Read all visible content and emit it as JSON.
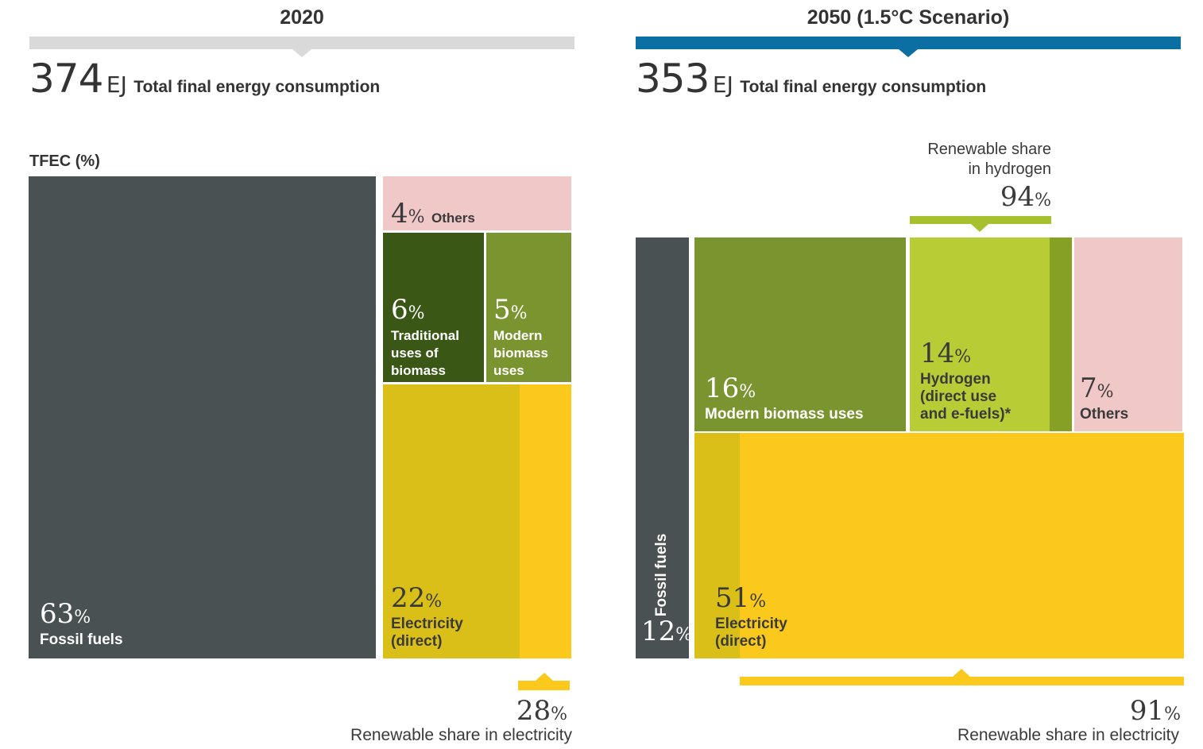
{
  "chart_data": [
    {
      "type": "treemap",
      "title": "2020",
      "total_value": "374",
      "total_unit": "EJ",
      "total_label": "Total final energy consumption",
      "axis_label": "TFEC (%)",
      "segments": [
        {
          "name": "Fossil fuels",
          "value": 63,
          "color": "#4a5152"
        },
        {
          "name": "Others",
          "value": 4,
          "color": "#f0c8c8"
        },
        {
          "name": "Traditional uses of biomass",
          "value": 6,
          "color": "#3a5716"
        },
        {
          "name": "Modern biomass uses",
          "value": 5,
          "color": "#7a9430"
        },
        {
          "name": "Electricity (direct)",
          "value": 22,
          "color": "#dabf18",
          "renewable_color": "#fbc81c"
        }
      ],
      "renewable_share_electricity": {
        "value": 28,
        "label": "Renewable share in electricity"
      }
    },
    {
      "type": "treemap",
      "title": "2050 (1.5°C Scenario)",
      "total_value": "353",
      "total_unit": "EJ",
      "total_label": "Total final energy consumption",
      "segments": [
        {
          "name": "Fossil fuels",
          "value": 12,
          "color": "#4a5152"
        },
        {
          "name": "Modern biomass uses",
          "value": 16,
          "color": "#7a9430"
        },
        {
          "name": "Hydrogen (direct use and e-fuels)*",
          "value": 14,
          "color": "#b8cc35",
          "nonrenewable_color": "#86a025"
        },
        {
          "name": "Others",
          "value": 7,
          "color": "#f0c8c8"
        },
        {
          "name": "Electricity (direct)",
          "value": 51,
          "color": "#fbc81c",
          "nonrenewable_color": "#dabf18"
        }
      ],
      "renewable_share_hydrogen": {
        "value": 94,
        "label_line1": "Renewable share",
        "label_line2": "in hydrogen"
      },
      "renewable_share_electricity": {
        "value": 91,
        "label": "Renewable share in electricity"
      }
    }
  ],
  "colors": {
    "bar_2020": "#d9d9d9",
    "bar_2050": "#0b6fa4",
    "electricity_marker": "#fbc81c",
    "hydrogen_marker": "#a6c02e"
  },
  "pct_sign": "%",
  "labels": {
    "p1_fossil": "Fossil fuels",
    "p1_others": "Others",
    "p1_trad": [
      "Traditional",
      "uses of",
      "biomass"
    ],
    "p1_modern": [
      "Modern",
      "biomass",
      "uses"
    ],
    "p1_elec": [
      "Electricity",
      "(direct)"
    ],
    "p2_fossil": "Fossil fuels",
    "p2_modern": "Modern biomass uses",
    "p2_hydrogen": [
      "Hydrogen",
      "(direct use",
      "and e-fuels)*"
    ],
    "p2_others": "Others",
    "p2_elec": [
      "Electricity",
      "(direct)"
    ]
  }
}
